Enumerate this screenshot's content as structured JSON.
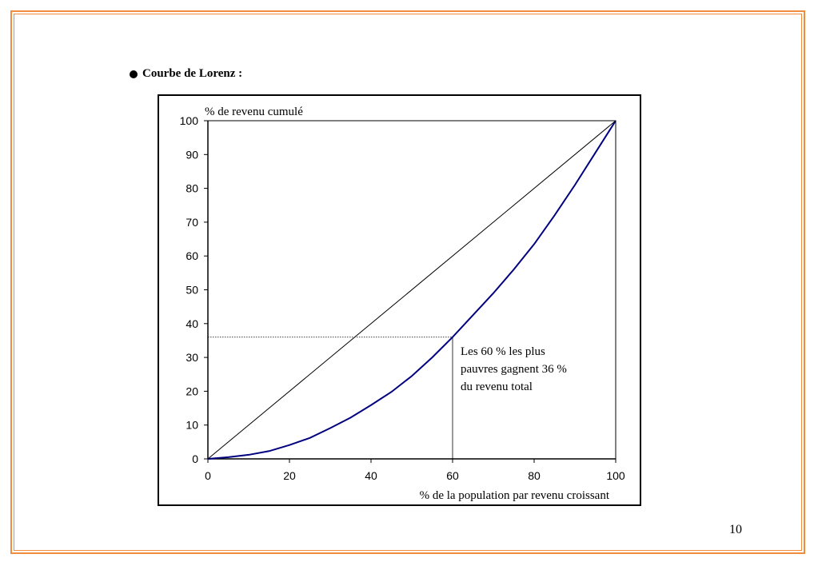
{
  "slide": {
    "heading": "Courbe de Lorenz :",
    "page_number": "10",
    "frame_color": "#f08c3c"
  },
  "chart_data": {
    "type": "line",
    "ylabel": "% de revenu cumulé",
    "xlabel": "% de la population par revenu croissant",
    "xlim": [
      0,
      100
    ],
    "ylim": [
      0,
      100
    ],
    "x_ticks": [
      0,
      20,
      40,
      60,
      80,
      100
    ],
    "y_ticks": [
      0,
      10,
      20,
      30,
      40,
      50,
      60,
      70,
      80,
      90,
      100
    ],
    "series": [
      {
        "color": "#000080",
        "x": [
          0,
          5,
          10,
          15,
          20,
          25,
          30,
          35,
          40,
          45,
          50,
          55,
          60,
          65,
          70,
          75,
          80,
          85,
          90,
          95,
          100
        ],
        "y": [
          0,
          0.5,
          1.2,
          2.3,
          4.1,
          6.2,
          9.1,
          12.2,
          15.9,
          19.8,
          24.5,
          30.0,
          36.0,
          42.5,
          49.0,
          56.0,
          63.5,
          72.0,
          81.0,
          90.5,
          100
        ]
      },
      {
        "color": "#000000",
        "x": [
          0,
          100
        ],
        "y": [
          0,
          100
        ]
      }
    ],
    "reference": {
      "x": 60,
      "y": 36
    },
    "annotation": [
      "Les 60  % les plus",
      "pauvres gagnent 36  %",
      "du revenu total"
    ]
  }
}
